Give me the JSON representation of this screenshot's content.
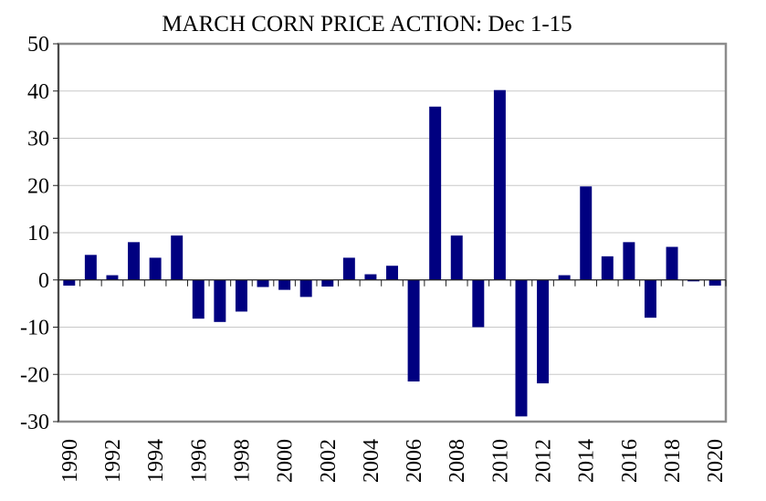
{
  "chart_data": {
    "type": "bar",
    "title": "MARCH CORN PRICE ACTION:  Dec 1-15",
    "xlabel": "",
    "ylabel": "",
    "ylim": [
      -30,
      50
    ],
    "yticks": [
      50,
      40,
      30,
      20,
      10,
      0,
      -10,
      -20,
      -30
    ],
    "grid": true,
    "bar_color": "#000080",
    "categories": [
      "1990",
      "1991",
      "1992",
      "1993",
      "1994",
      "1995",
      "1996",
      "1997",
      "1998",
      "1999",
      "2000",
      "2001",
      "2002",
      "2003",
      "2004",
      "2005",
      "2006",
      "2007",
      "2008",
      "2009",
      "2010",
      "2011",
      "2012",
      "2013",
      "2014",
      "2015",
      "2016",
      "2017",
      "2018",
      "2019",
      "2020"
    ],
    "xtick_labels": [
      "1990",
      "1992",
      "1994",
      "1996",
      "1998",
      "2000",
      "2002",
      "2004",
      "2006",
      "2008",
      "2010",
      "2012",
      "2014",
      "2016",
      "2018",
      "2020"
    ],
    "values": [
      -1.2,
      5.3,
      1.0,
      8.0,
      4.7,
      9.4,
      -8.2,
      -8.9,
      -6.7,
      -1.5,
      -2.1,
      -3.6,
      -1.4,
      4.7,
      1.2,
      3.0,
      -21.5,
      36.7,
      9.4,
      -10.0,
      40.2,
      -28.9,
      -21.9,
      1.0,
      19.8,
      5.0,
      8.0,
      -8.0,
      7.0,
      -0.3,
      -1.2
    ]
  }
}
